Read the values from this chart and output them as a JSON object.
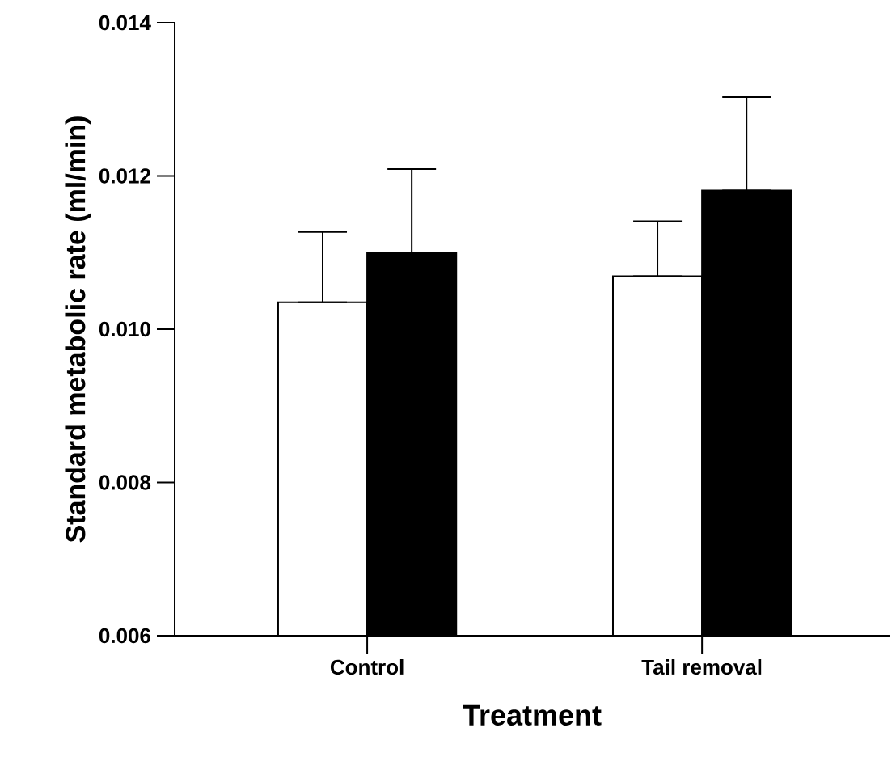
{
  "chart_data": {
    "type": "bar",
    "xlabel": "Treatment",
    "ylabel": "Standard metabolic rate (ml/min)",
    "categories": [
      "Control",
      "Tail removal"
    ],
    "series": [
      {
        "color": "#ffffff",
        "values": [
          0.01035,
          0.01069
        ],
        "errors": [
          [
            0.01035,
            0.01127
          ],
          [
            0.01069,
            0.01141
          ]
        ]
      },
      {
        "color": "#000000",
        "values": [
          0.011,
          0.01181
        ],
        "errors": [
          [
            0.011,
            0.01209
          ],
          [
            0.01181,
            0.01303
          ]
        ]
      }
    ],
    "ylim": [
      0.006,
      0.014
    ],
    "yticks": [
      {
        "value": 0.006,
        "label": "0.006"
      },
      {
        "value": 0.008,
        "label": "0.008"
      },
      {
        "value": 0.01,
        "label": "0.010"
      },
      {
        "value": 0.012,
        "label": "0.012"
      },
      {
        "value": 0.014,
        "label": "0.014"
      }
    ]
  }
}
